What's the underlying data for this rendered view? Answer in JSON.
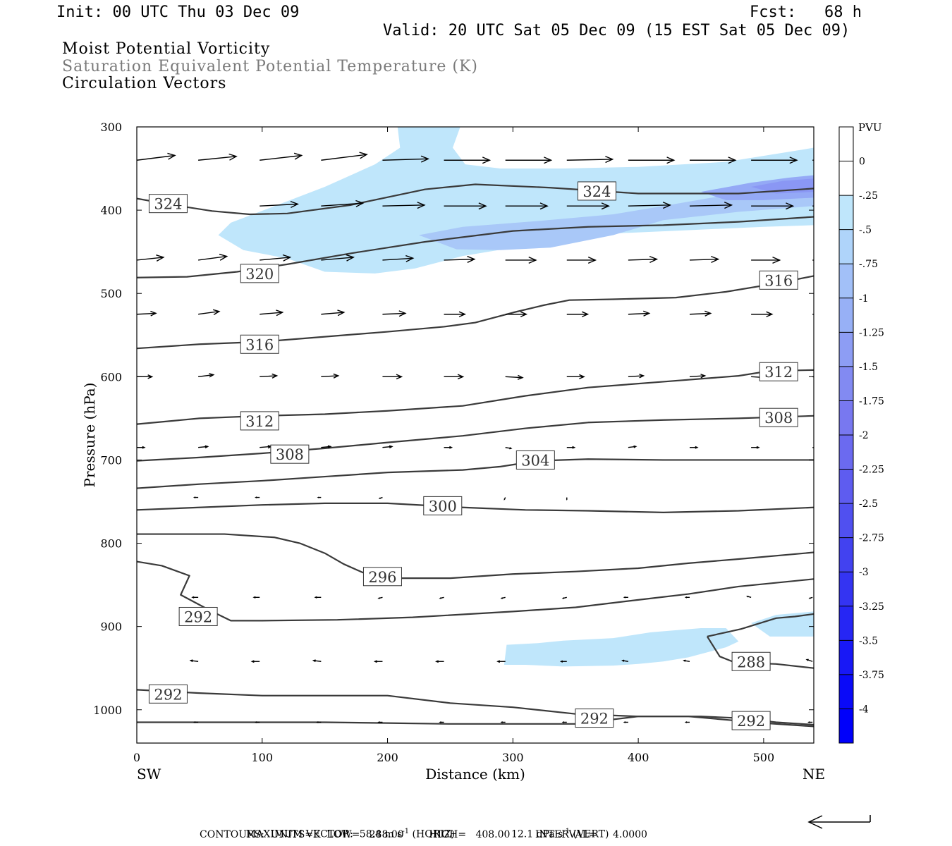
{
  "header": {
    "init": "Init: 00 UTC Thu 03 Dec 09",
    "fcst": "Fcst:   68 h",
    "valid": "Valid: 20 UTC Sat 05 Dec 09 (15 EST Sat 05 Dec 09)"
  },
  "fields": {
    "line1": "Moist Potential Vorticity",
    "line2": "Saturation Equivalent Potential Temperature (K)",
    "line3": "Circulation Vectors"
  },
  "colors": {
    "frame": "#000000",
    "contour": "#3a3a3a",
    "shade1": "#bfe6fb",
    "shade2": "#a9c8f8",
    "shade3": "#94a9f6",
    "shade4": "#8a97f4"
  },
  "chart_data": {
    "type": "contour",
    "xlabel": "Distance (km)",
    "ylabel": "Pressure (hPa)",
    "xlim": [
      0,
      540
    ],
    "ylim": [
      300,
      1040
    ],
    "x_ticks": [
      0,
      100,
      200,
      300,
      400,
      500
    ],
    "y_ticks": [
      300,
      400,
      500,
      600,
      700,
      800,
      900,
      1000
    ],
    "x_end_labels": {
      "left": "SW",
      "right": "NE"
    },
    "colorbar": {
      "unit": "PVU",
      "levels": [
        "0",
        "-.25",
        "-.5",
        "-.75",
        "-1",
        "-1.25",
        "-1.5",
        "-1.75",
        "-2",
        "-2.25",
        "-2.5",
        "-2.75",
        "-3",
        "-3.25",
        "-3.5",
        "-3.75",
        "-4"
      ],
      "colors": [
        "#ffffff",
        "#ffffff",
        "#bfe6fb",
        "#afd4fa",
        "#a2c0f8",
        "#97b0f6",
        "#8d9df4",
        "#828af2",
        "#7878f0",
        "#6b6af0",
        "#5e5cf0",
        "#5050f0",
        "#4242f0",
        "#3434f2",
        "#2626f4",
        "#1818f6",
        "#0a0af8",
        "#0000fa"
      ]
    },
    "contours": [
      {
        "label": "324",
        "x": [
          0,
          30,
          60,
          90,
          120,
          170,
          230,
          270,
          330,
          400,
          480,
          540
        ],
        "y": [
          386,
          394,
          401,
          405,
          404,
          394,
          375,
          369,
          373,
          380,
          380,
          374
        ]
      },
      {
        "label": "320",
        "x": [
          0,
          40,
          80,
          120,
          170,
          230,
          300,
          360,
          420,
          480,
          540
        ],
        "y": [
          481,
          480,
          474,
          465,
          452,
          438,
          425,
          420,
          418,
          414,
          408
        ]
      },
      {
        "label": "316",
        "x": [
          0,
          50,
          100,
          150,
          200,
          245,
          270,
          300,
          325,
          345,
          380,
          430,
          470,
          510,
          540
        ],
        "y": [
          566,
          561,
          558,
          552,
          546,
          540,
          535,
          523,
          514,
          508,
          507,
          505,
          498,
          488,
          479
        ]
      },
      {
        "label": "312",
        "x": [
          0,
          50,
          100,
          150,
          200,
          260,
          310,
          360,
          420,
          480,
          505,
          540
        ],
        "y": [
          657,
          650,
          647,
          645,
          641,
          635,
          623,
          613,
          606,
          599,
          593,
          592
        ]
      },
      {
        "label": "308",
        "x": [
          0,
          50,
          100,
          150,
          200,
          260,
          310,
          360,
          420,
          480,
          540
        ],
        "y": [
          701,
          697,
          692,
          686,
          679,
          671,
          662,
          655,
          652,
          650,
          647
        ]
      },
      {
        "label": "304",
        "x": [
          0,
          50,
          100,
          150,
          200,
          260,
          290,
          320,
          360,
          420,
          480,
          540
        ],
        "y": [
          734,
          729,
          725,
          720,
          715,
          712,
          708,
          701,
          699,
          700,
          700,
          700
        ]
      },
      {
        "label": "300",
        "x": [
          0,
          50,
          100,
          150,
          200,
          260,
          310,
          360,
          420,
          480,
          540
        ],
        "y": [
          760,
          757,
          754,
          752,
          752,
          757,
          760,
          761,
          763,
          761,
          757
        ]
      },
      {
        "label": "296",
        "x": [
          0,
          70,
          110,
          130,
          150,
          165,
          180,
          200,
          250,
          300,
          350,
          400,
          440,
          480,
          540
        ],
        "y": [
          789,
          789,
          793,
          800,
          812,
          825,
          835,
          842,
          842,
          837,
          834,
          830,
          824,
          819,
          811
        ]
      },
      {
        "label": "292",
        "x": [
          0,
          20,
          42,
          35,
          60,
          75,
          100,
          160,
          220,
          300,
          350,
          400,
          440,
          480,
          540
        ],
        "y": [
          822,
          827,
          839,
          862,
          882,
          893,
          893,
          892,
          889,
          882,
          877,
          868,
          861,
          852,
          843
        ]
      },
      {
        "label": "288",
        "x": [
          455,
          470,
          482,
          495,
          510,
          525,
          540
        ],
        "y": [
          912,
          907,
          903,
          897,
          890,
          888,
          885
        ]
      },
      {
        "label": "288",
        "x": [
          455,
          465,
          475,
          490,
          510,
          540
        ],
        "y": [
          912,
          936,
          942,
          944,
          945,
          950
        ]
      },
      {
        "label": "292",
        "x": [
          0,
          50,
          100,
          150,
          200,
          250,
          300,
          350,
          400,
          450,
          480,
          510,
          540
        ],
        "y": [
          976,
          980,
          983,
          983,
          983,
          992,
          997,
          1005,
          1008,
          1008,
          1010,
          1015,
          1018
        ]
      },
      {
        "label": "",
        "x": [
          0,
          50,
          100,
          150,
          200,
          250,
          300,
          350,
          400,
          440,
          470,
          500,
          540
        ],
        "y": [
          1015,
          1015,
          1015,
          1015,
          1016,
          1017,
          1017,
          1017,
          1008,
          1008,
          1012,
          1016,
          1020
        ]
      }
    ],
    "contour_labels": [
      {
        "text": "324",
        "x": 25,
        "y": 392
      },
      {
        "text": "324",
        "x": 367,
        "y": 377
      },
      {
        "text": "320",
        "x": 98,
        "y": 476
      },
      {
        "text": "316",
        "x": 98,
        "y": 561
      },
      {
        "text": "316",
        "x": 512,
        "y": 484
      },
      {
        "text": "312",
        "x": 98,
        "y": 653
      },
      {
        "text": "312",
        "x": 512,
        "y": 594
      },
      {
        "text": "308",
        "x": 122,
        "y": 693
      },
      {
        "text": "308",
        "x": 512,
        "y": 649
      },
      {
        "text": "304",
        "x": 318,
        "y": 700
      },
      {
        "text": "300",
        "x": 244,
        "y": 755
      },
      {
        "text": "296",
        "x": 196,
        "y": 840
      },
      {
        "text": "292",
        "x": 49,
        "y": 888
      },
      {
        "text": "288",
        "x": 490,
        "y": 942
      },
      {
        "text": "292",
        "x": 25,
        "y": 981
      },
      {
        "text": "292",
        "x": 365,
        "y": 1010
      },
      {
        "text": "292",
        "x": 490,
        "y": 1013
      }
    ],
    "shading": [
      {
        "level": 1,
        "x": [
          208,
          237,
          258,
          252,
          262,
          290,
          340,
          400,
          470,
          520,
          540,
          540,
          500,
          440,
          380,
          320,
          260,
          222,
          190,
          150,
          120,
          85,
          65,
          75,
          110,
          150,
          190,
          210,
          208
        ],
        "y": [
          300,
          300,
          300,
          325,
          345,
          350,
          350,
          348,
          342,
          330,
          325,
          418,
          420,
          424,
          428,
          440,
          455,
          470,
          476,
          474,
          458,
          448,
          430,
          415,
          395,
          372,
          345,
          325,
          300
        ]
      },
      {
        "level": 2,
        "x": [
          225,
          260,
          320,
          380,
          420,
          470,
          520,
          540,
          540,
          480,
          420,
          380,
          330,
          290,
          255,
          225
        ],
        "y": [
          430,
          420,
          413,
          405,
          395,
          382,
          373,
          370,
          395,
          402,
          412,
          430,
          445,
          448,
          447,
          430
        ]
      },
      {
        "level": 3,
        "x": [
          450,
          490,
          520,
          540,
          540,
          500,
          470,
          450
        ],
        "y": [
          378,
          367,
          361,
          358,
          385,
          388,
          388,
          378
        ]
      },
      {
        "level": 4,
        "x": [
          490,
          515,
          540,
          540,
          510,
          490
        ],
        "y": [
          372,
          365,
          362,
          378,
          380,
          372
        ]
      },
      {
        "level": 1,
        "x": [
          295,
          320,
          340,
          380,
          410,
          450,
          470,
          480,
          470,
          440,
          420,
          400,
          380,
          340,
          310,
          293,
          295
        ],
        "y": [
          922,
          920,
          917,
          914,
          907,
          902,
          902,
          918,
          925,
          937,
          942,
          945,
          947,
          948,
          946,
          946,
          922
        ]
      },
      {
        "level": 1,
        "x": [
          490,
          510,
          540,
          540,
          505,
          490
        ],
        "y": [
          896,
          886,
          882,
          912,
          912,
          896
        ]
      }
    ],
    "vector_rows": [
      {
        "p": 340,
        "u": [
          20,
          20,
          22,
          24,
          24,
          24,
          24,
          24,
          24,
          24,
          24,
          24
        ],
        "w": [
          -2.5,
          -2,
          -2.5,
          -3,
          -0.7,
          0,
          0,
          -0.5,
          0,
          0,
          0,
          -0.5
        ]
      },
      {
        "p": 395,
        "u": [
          0,
          0,
          20,
          22,
          22,
          22,
          22,
          22,
          22,
          22,
          22,
          22
        ],
        "w": [
          0,
          0,
          -1,
          -1.5,
          -0.5,
          0,
          0,
          0,
          -0.5,
          -0.5,
          0,
          0.5
        ]
      },
      {
        "p": 460,
        "u": [
          14,
          15,
          16,
          17,
          16,
          16,
          16,
          15,
          15,
          15,
          15,
          15
        ],
        "w": [
          -1.5,
          -2,
          -1.5,
          -1.5,
          -1,
          -0.5,
          0,
          0,
          -0.5,
          -0.5,
          0,
          0.5
        ]
      },
      {
        "p": 525,
        "u": [
          10,
          11,
          12,
          12,
          12,
          11,
          11,
          11,
          11,
          11,
          11,
          11
        ],
        "w": [
          -0.5,
          -1.5,
          -1,
          -1,
          -0.5,
          0,
          0,
          0,
          -0.5,
          -0.5,
          0,
          0.5
        ]
      },
      {
        "p": 600,
        "u": [
          8,
          8,
          9,
          9,
          10,
          10,
          9,
          9,
          8,
          8,
          8,
          8
        ],
        "w": [
          0,
          -1,
          -0.5,
          -0.5,
          0,
          0,
          0.5,
          0,
          -0.5,
          -0.5,
          0.5,
          1
        ]
      },
      {
        "p": 685,
        "u": [
          4,
          5,
          6,
          5,
          5,
          4,
          3,
          4,
          4,
          4,
          4,
          4
        ],
        "w": [
          0,
          -0.5,
          -0.5,
          -0.5,
          -0.5,
          0,
          0.5,
          0,
          -0.5,
          0,
          0,
          0.5
        ]
      },
      {
        "p": 745,
        "u": [
          -2,
          -2,
          -2,
          -1.5,
          -1.5,
          -0.5,
          -0.5,
          0,
          0,
          0.5,
          0.5,
          0.5
        ],
        "w": [
          0,
          0,
          0,
          0,
          0.5,
          1,
          1,
          1,
          0.5,
          0.5,
          0.5,
          0.5
        ]
      },
      {
        "p": 865,
        "u": [
          -3,
          -3,
          -3,
          -3,
          -2,
          -2,
          -2,
          -2,
          -2,
          -2,
          -2,
          -1.5
        ],
        "w": [
          -0.5,
          0,
          0,
          0,
          0.5,
          0.5,
          0.5,
          0.5,
          0,
          0,
          -0.5,
          0.5
        ]
      },
      {
        "p": 942,
        "u": [
          -4,
          -4,
          -4,
          -4,
          -4,
          -4,
          -4,
          -3,
          -3,
          -3,
          -3,
          -3
        ],
        "w": [
          0,
          -0.5,
          0,
          -0.5,
          0,
          0,
          0,
          0,
          -0.5,
          -0.5,
          -1,
          -1
        ]
      },
      {
        "p": 1015,
        "u": [
          -2,
          -2,
          -2,
          -2,
          -2,
          -2,
          -2,
          -2,
          -2,
          -2,
          -2,
          -2
        ],
        "w": [
          0,
          0,
          0,
          0,
          0,
          0,
          0,
          0,
          0,
          0,
          0,
          0
        ]
      }
    ],
    "vector_x": [
      0,
      49,
      98,
      147,
      196,
      245,
      294,
      343,
      392,
      441,
      490,
      539
    ]
  },
  "footer": {
    "max_vector_label": "MAXIMUM VECTOR:",
    "max_vector_horiz": "58.4 m s",
    "horiz_tag": "(HORIZ)",
    "max_vector_vert": "12.1 dPa s",
    "vert_tag": "(VERT)",
    "exponent": "-1",
    "contours": "CONTOURS:  UNITS=K  LOW=   288.00        HIGH=   408.00        INTERVAL=     4.0000"
  }
}
